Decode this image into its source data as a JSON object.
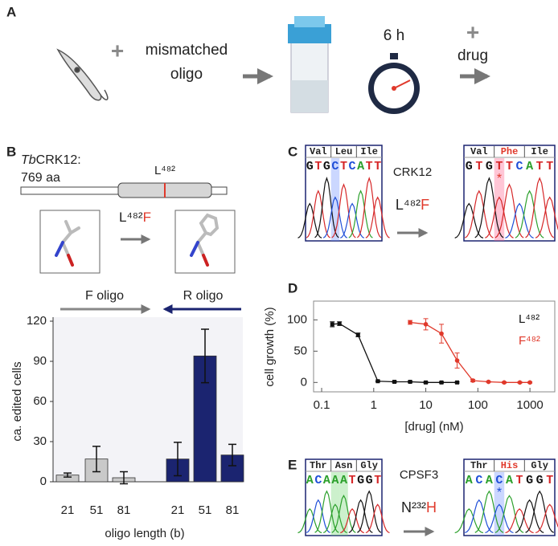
{
  "panel_labels": [
    "A",
    "B",
    "C",
    "D",
    "E"
  ],
  "panel_a": {
    "plus": "+",
    "oligo_text": [
      "mismatched",
      "oligo"
    ],
    "time": "6 h",
    "drug_plus": "+",
    "drug": "drug"
  },
  "panel_b": {
    "species": "Tb",
    "gene": "CRK12:",
    "length": "769 aa",
    "site": "L⁴⁸²",
    "mutation": {
      "from": "L⁴⁸²",
      "to": "F"
    }
  },
  "panel_c": {
    "gene": "CRK12",
    "mutation": {
      "from": "L⁴⁸²",
      "to": "F"
    },
    "before": {
      "codons": [
        "Val",
        "Leu",
        "Ile"
      ],
      "sequence": [
        "G",
        "T",
        "G",
        "C",
        "T",
        "C",
        "A",
        "T",
        "T"
      ]
    },
    "after": {
      "codons": [
        "Val",
        "Phe",
        "Ile"
      ],
      "sequence": [
        "G",
        "T",
        "G",
        "T",
        "T",
        "C",
        "A",
        "T",
        "T"
      ],
      "marker": "*"
    }
  },
  "panel_e": {
    "gene": "CPSF3",
    "mutation": {
      "from": "N²³²",
      "to": "H"
    },
    "before": {
      "codons": [
        "Thr",
        "Asn",
        "Gly"
      ],
      "sequence": [
        "A",
        "C",
        "A",
        "A",
        "A",
        "T",
        "G",
        "G",
        "T"
      ]
    },
    "after": {
      "codons": [
        "Thr",
        "His",
        "Gly"
      ],
      "sequence": [
        "A",
        "C",
        "A",
        "C",
        "A",
        "T",
        "G",
        "G",
        "T"
      ],
      "marker": "*"
    }
  },
  "chart_data": [
    {
      "type": "bar",
      "y_label": "ca. edited cells",
      "x_label": "oligo length (b)",
      "categories": [
        "21",
        "51",
        "81",
        "21",
        "51",
        "81"
      ],
      "ylim": [
        0,
        120
      ],
      "yticks": [
        0,
        30,
        60,
        90,
        120
      ],
      "series": [
        {
          "name": "F oligo",
          "color": "#c9c9c9",
          "values": [
            5,
            17,
            3,
            null,
            null,
            null
          ],
          "errors": [
            1.5,
            9.5,
            4.5,
            null,
            null,
            null
          ]
        },
        {
          "name": "R oligo",
          "color": "#1b2470",
          "values": [
            null,
            null,
            null,
            17,
            94,
            20
          ],
          "errors": [
            null,
            null,
            null,
            12.5,
            20,
            8
          ]
        }
      ]
    },
    {
      "type": "scatter",
      "y_label": "cell growth (%)",
      "x_label": "[drug] (nM)",
      "log_x": true,
      "xlim": [
        0.07,
        3000
      ],
      "xticks": [
        0.1,
        1,
        10,
        100,
        1000
      ],
      "ylim": [
        -15,
        130
      ],
      "yticks": [
        0,
        50,
        100
      ],
      "series": [
        {
          "name": "L⁴⁸²",
          "color": "#111111",
          "x": [
            0.16,
            0.22,
            0.5,
            1.2,
            2.5,
            5,
            10,
            20,
            40
          ],
          "values": [
            93,
            94,
            76,
            2,
            1,
            1,
            0,
            0,
            0
          ],
          "errors": [
            4,
            3,
            3,
            1,
            1,
            1,
            1,
            1,
            1
          ]
        },
        {
          "name": "F⁴⁸²",
          "color": "#e0392b",
          "x": [
            5,
            10,
            20,
            40,
            80,
            160,
            320,
            640,
            1000
          ],
          "values": [
            96,
            93,
            78,
            35,
            3,
            1,
            0,
            0,
            0
          ],
          "errors": [
            3,
            9,
            15,
            12,
            2,
            1,
            1,
            1,
            1
          ]
        }
      ]
    }
  ]
}
